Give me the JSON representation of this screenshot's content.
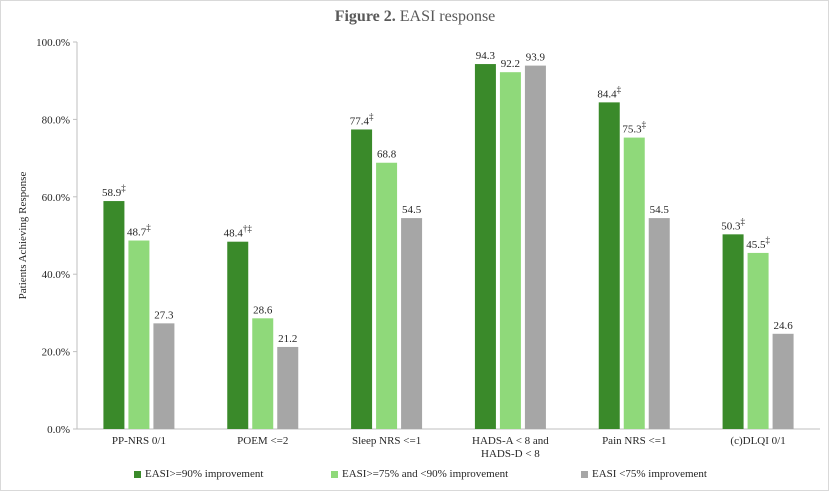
{
  "title_bold": "Figure 2.",
  "title_rest": "EASI response",
  "chart_data": {
    "type": "bar",
    "title": "Figure 2. EASI response",
    "ylabel": "Patients Achieving Response",
    "xlabel": "",
    "ylim": [
      0,
      100
    ],
    "yticks": [
      "0.0%",
      "20.0%",
      "40.0%",
      "60.0%",
      "80.0%",
      "100.0%"
    ],
    "ytick_values": [
      0,
      20,
      40,
      60,
      80,
      100
    ],
    "categories": [
      [
        "PP-NRS 0/1"
      ],
      [
        "POEM <=2"
      ],
      [
        "Sleep NRS <=1"
      ],
      [
        "HADS-A < 8 and",
        "HADS-D < 8"
      ],
      [
        "Pain NRS <=1"
      ],
      [
        "(c)DLQI 0/1"
      ]
    ],
    "series": [
      {
        "name": "EASI>=90% improvement",
        "color": "#3a8a2a",
        "values": [
          58.9,
          48.4,
          77.4,
          94.3,
          84.4,
          50.3
        ],
        "labels": [
          "58.9",
          "48.4",
          "77.4",
          "94.3",
          "84.4",
          "50.3"
        ],
        "marks": [
          "‡",
          "†‡",
          "‡",
          "",
          "‡",
          "‡"
        ]
      },
      {
        "name": "EASI>=75% and <90% improvement",
        "color": "#8fd97a",
        "values": [
          48.7,
          28.6,
          68.8,
          92.2,
          75.3,
          45.5
        ],
        "labels": [
          "48.7",
          "28.6",
          "68.8",
          "92.2",
          "75.3",
          "45.5"
        ],
        "marks": [
          "‡",
          "",
          "",
          "",
          "‡",
          "‡"
        ]
      },
      {
        "name": "EASI <75% improvement",
        "color": "#a6a6a6",
        "values": [
          27.3,
          21.2,
          54.5,
          93.9,
          54.5,
          24.6
        ],
        "labels": [
          "27.3",
          "21.2",
          "54.5",
          "93.9",
          "54.5",
          "24.6"
        ],
        "marks": [
          "",
          "",
          "",
          "",
          "",
          ""
        ]
      }
    ],
    "legend_position": "bottom"
  }
}
